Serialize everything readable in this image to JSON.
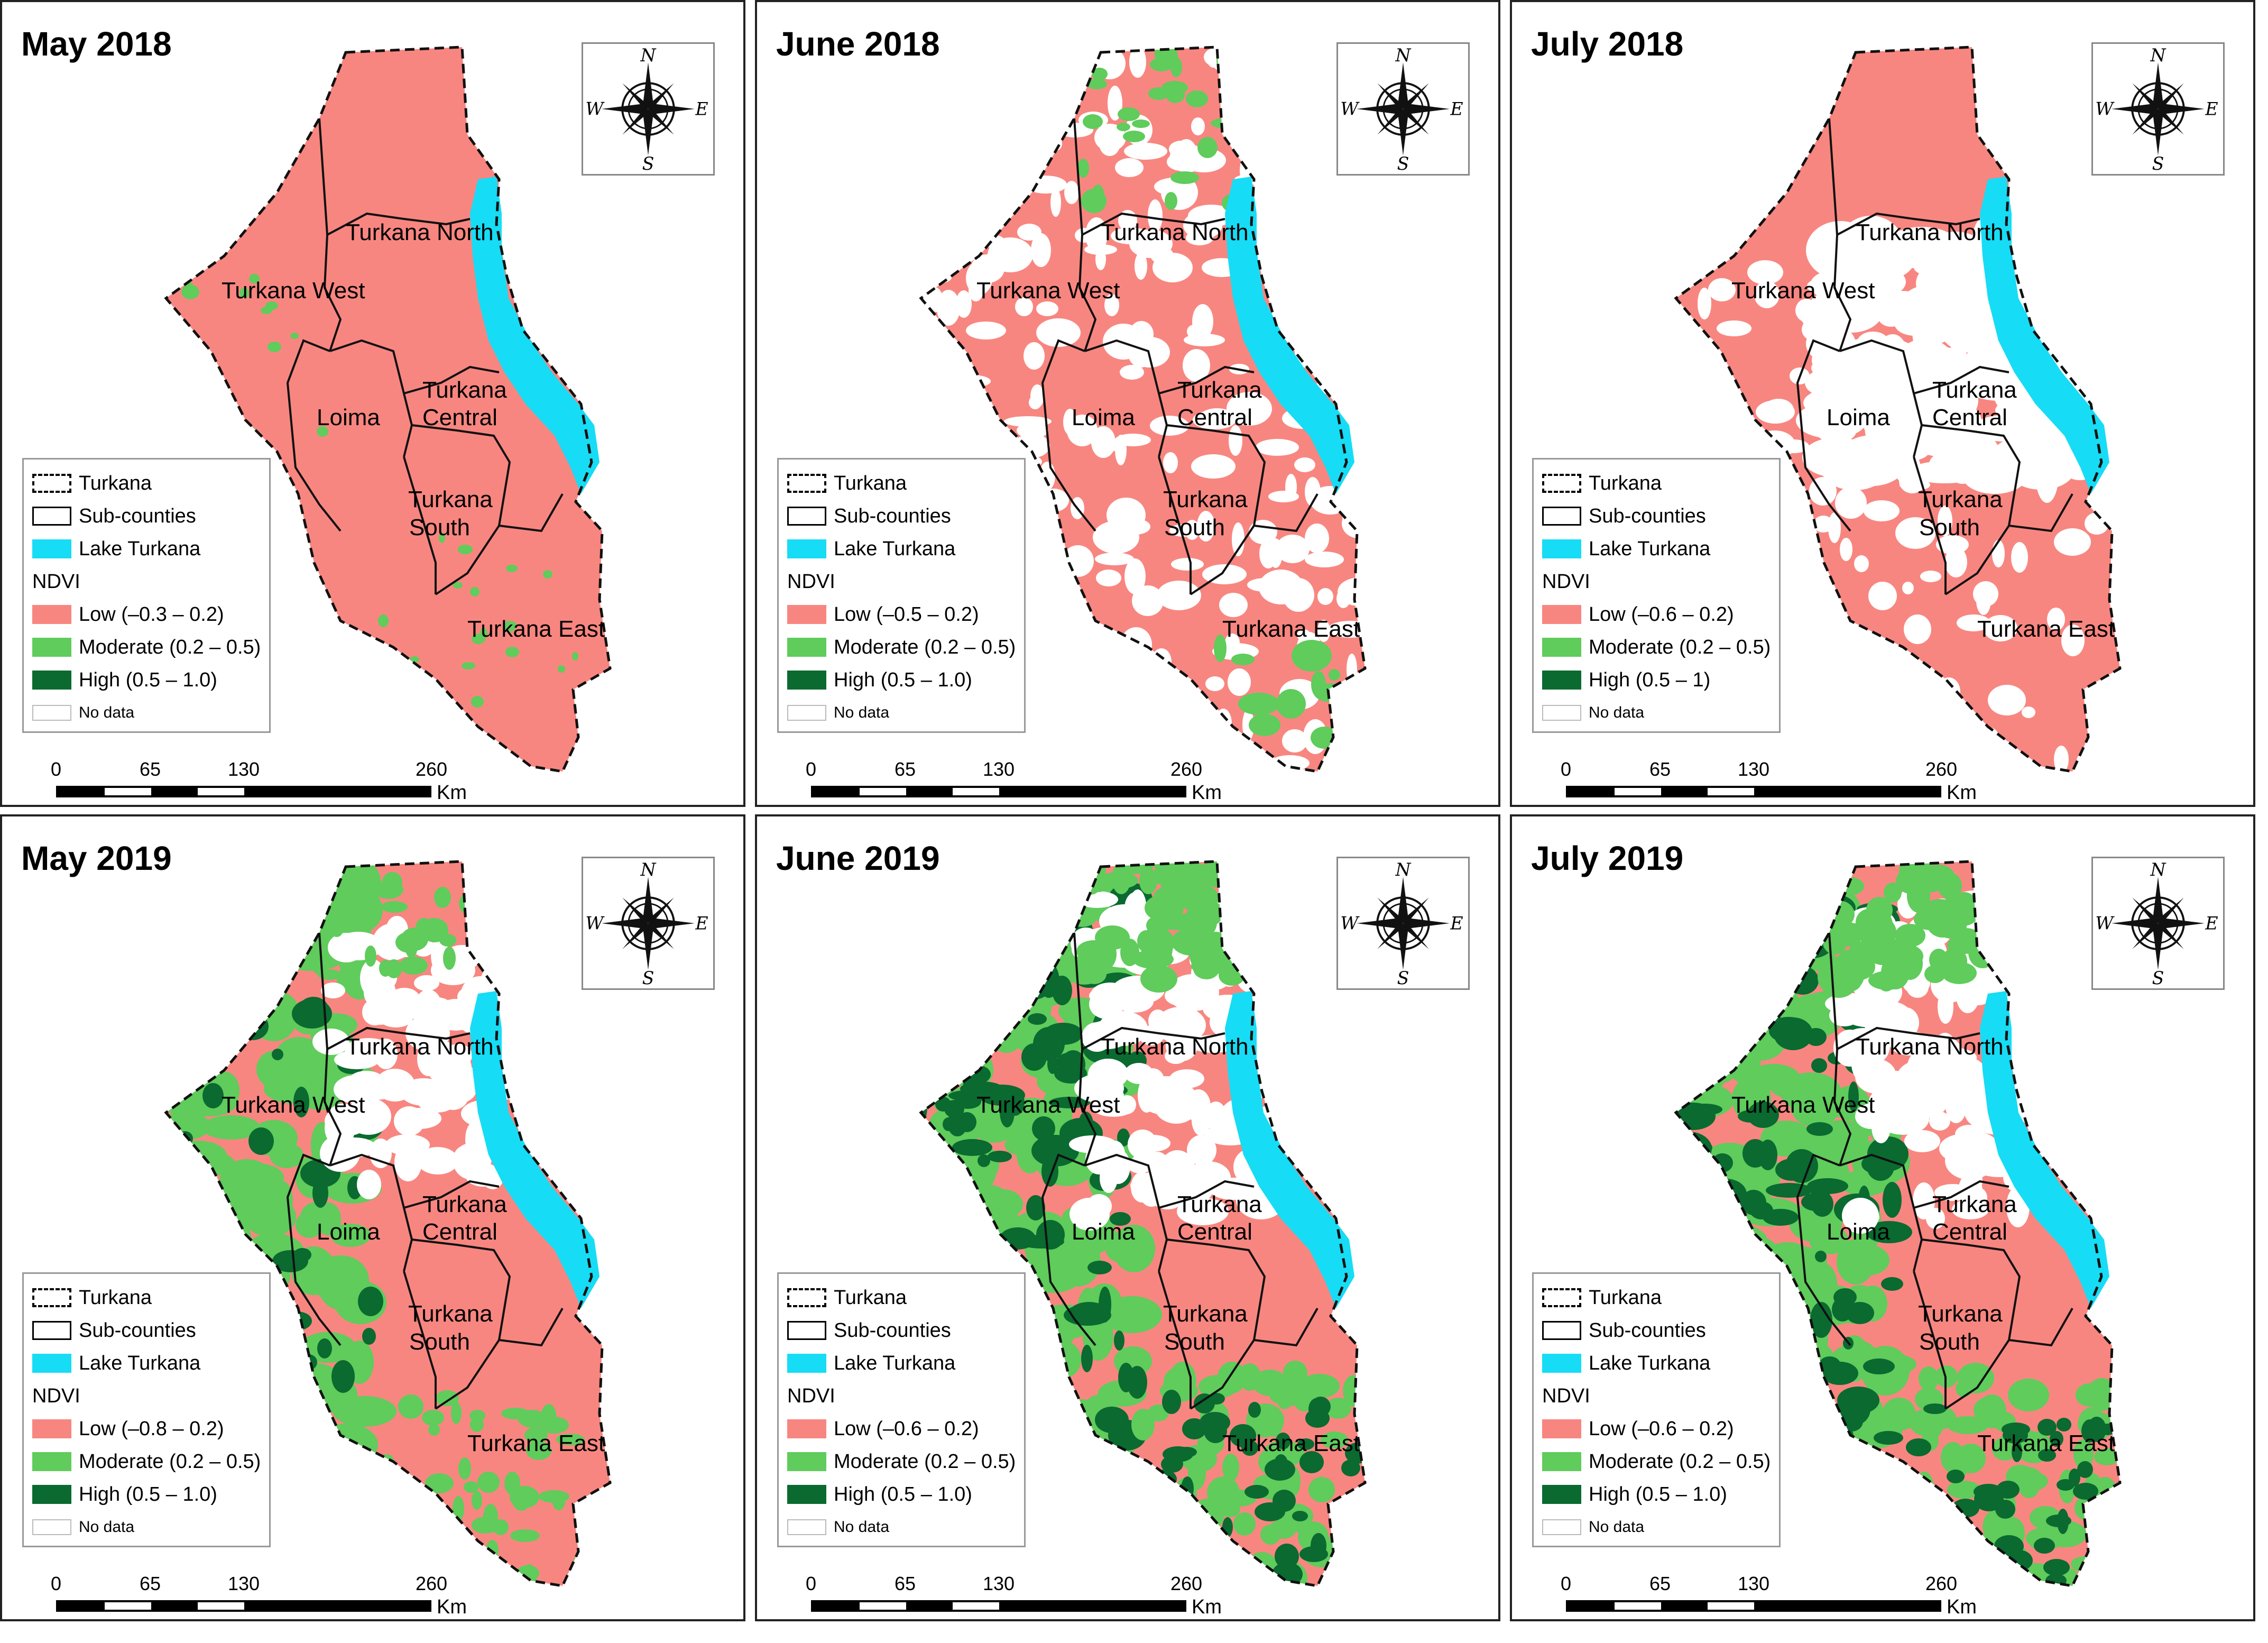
{
  "panels": [
    {
      "title": "May 2018",
      "style": "low",
      "legend": {
        "boundary": "Turkana",
        "subcounties": "Sub-counties",
        "lake": "Lake Turkana",
        "ndvi": "NDVI",
        "low": "Low (–0.3 – 0.2)",
        "moderate": "Moderate (0.2 – 0.5)",
        "high": "High (0.5 – 1.0)",
        "nodata": "No data"
      }
    },
    {
      "title": "June 2018",
      "style": "patchy",
      "legend": {
        "boundary": "Turkana",
        "subcounties": "Sub-counties",
        "lake": "Lake Turkana",
        "ndvi": "NDVI",
        "low": "Low (–0.5 – 0.2)",
        "moderate": "Moderate (0.2 – 0.5)",
        "high": "High (0.5 – 1.0)",
        "nodata": "No data"
      }
    },
    {
      "title": "July 2018",
      "style": "patchy2",
      "legend": {
        "boundary": "Turkana",
        "subcounties": "Sub-counties",
        "lake": "Lake Turkana",
        "ndvi": "NDVI",
        "low": "Low (–0.6 – 0.2)",
        "moderate": "Moderate (0.2 – 0.5)",
        "high": "High (0.5 – 1)",
        "nodata": "No data"
      }
    },
    {
      "title": "May 2019",
      "style": "green",
      "legend": {
        "boundary": "Turkana",
        "subcounties": "Sub-counties",
        "lake": "Lake Turkana",
        "ndvi": "NDVI",
        "low": "Low (–0.8 – 0.2)",
        "moderate": "Moderate (0.2 – 0.5)",
        "high": "High (0.5 – 1.0)",
        "nodata": "No data"
      }
    },
    {
      "title": "June 2019",
      "style": "green2",
      "legend": {
        "boundary": "Turkana",
        "subcounties": "Sub-counties",
        "lake": "Lake Turkana",
        "ndvi": "NDVI",
        "low": "Low (–0.6 – 0.2)",
        "moderate": "Moderate (0.2 – 0.5)",
        "high": "High (0.5 – 1.0)",
        "nodata": "No data"
      }
    },
    {
      "title": "July 2019",
      "style": "green2",
      "legend": {
        "boundary": "Turkana",
        "subcounties": "Sub-counties",
        "lake": "Lake Turkana",
        "ndvi": "NDVI",
        "low": "Low (–0.6 – 0.2)",
        "moderate": "Moderate (0.2 – 0.5)",
        "high": "High (0.5 – 1.0)",
        "nodata": "No data"
      }
    }
  ],
  "subcounty_labels": [
    "Turkana North",
    "Turkana West",
    "Turkana",
    "Central",
    "Loima",
    "Turkana",
    "South",
    "Turkana East"
  ],
  "compass_letters": {
    "n": "N",
    "s": "S",
    "e": "E",
    "w": "W"
  },
  "scale": {
    "ticks": [
      "0",
      "65",
      "130",
      "260"
    ],
    "unit": "Km"
  },
  "colors": {
    "low": "#f88680",
    "moderate": "#5fcc5c",
    "high": "#0a6a30",
    "lake": "#17dcf5",
    "nodata": "#ffffff"
  }
}
